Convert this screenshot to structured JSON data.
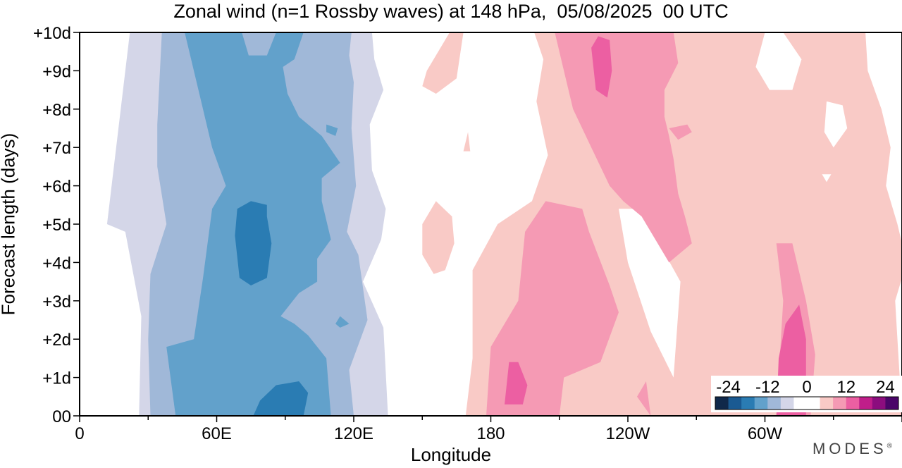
{
  "chart_data": {
    "type": "heatmap",
    "title": "Zonal wind (n=1 Rossby waves) at 148 hPa,  05/08/2025  00 UTC",
    "xlabel": "Longitude",
    "ylabel": "Forecast length (days)",
    "x_ticks": [
      "0",
      "60E",
      "120E",
      "180",
      "120W",
      "60W"
    ],
    "y_ticks": [
      "00",
      "+1d",
      "+2d",
      "+3d",
      "+4d",
      "+5d",
      "+6d",
      "+7d",
      "+8d",
      "+9d",
      "+10d"
    ],
    "xlim_deg": [
      0,
      360
    ],
    "ylim_days": [
      0,
      10
    ],
    "colorbar": {
      "tick_labels": [
        "-24",
        "-12",
        "0",
        "12",
        "24"
      ],
      "levels": [
        -24,
        -20,
        -16,
        -12,
        -8,
        -4,
        0,
        4,
        8,
        12,
        16,
        20,
        24
      ],
      "colors": [
        "#10284a",
        "#1a5a92",
        "#2a7cb3",
        "#62a1cb",
        "#a0b8d8",
        "#d4d6e8",
        "#ffffff",
        "#ffffff",
        "#f9cac6",
        "#f59ab4",
        "#ec5fa2",
        "#c01e8a",
        "#8c0d7e",
        "#4a0568"
      ]
    },
    "regions": [
      {
        "level": -4,
        "color": "#d4d6e8",
        "lon_range": [
          12,
          135
        ],
        "day_range": [
          0,
          10
        ],
        "note": "outer negative band"
      },
      {
        "level": -8,
        "color": "#a0b8d8",
        "lon_range": [
          30,
          120
        ],
        "day_range": [
          0,
          10
        ]
      },
      {
        "level": -12,
        "color": "#62a1cb",
        "lon_range": [
          40,
          110
        ],
        "day_range": [
          0,
          10
        ]
      },
      {
        "level": -16,
        "color": "#2a7cb3",
        "lon_range": [
          66,
          88
        ],
        "day_range": [
          3.4,
          5.6
        ],
        "note": "core minimum near 75E"
      },
      {
        "level": -16,
        "color": "#2a7cb3",
        "lon_range": [
          74,
          100
        ],
        "day_range": [
          0,
          0.9
        ]
      },
      {
        "level": 4,
        "color": "#f9cac6",
        "lon_range": [
          168,
          360
        ],
        "day_range": [
          0,
          10
        ],
        "note": "outer positive band"
      },
      {
        "level": 8,
        "color": "#f59ab4",
        "lon_range": [
          178,
          290
        ],
        "day_range": [
          0,
          10
        ]
      },
      {
        "level": 12,
        "color": "#ec5fa2",
        "lon_range": [
          186,
          195
        ],
        "day_range": [
          0.1,
          1.5
        ]
      },
      {
        "level": 12,
        "color": "#ec5fa2",
        "lon_range": [
          224,
          233
        ],
        "day_range": [
          8.4,
          9.9
        ]
      },
      {
        "level": 12,
        "color": "#ec5fa2",
        "lon_range": [
          303,
          321
        ],
        "day_range": [
          0,
          2.9
        ]
      }
    ]
  },
  "brand": "MODES"
}
